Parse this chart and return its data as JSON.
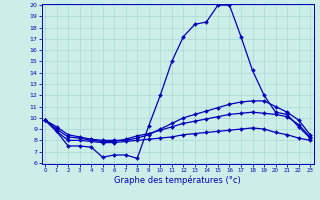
{
  "xlabel": "Graphe des températures (°c)",
  "bg_color": "#cceee8",
  "line_color": "#0000bb",
  "hours": [
    0,
    1,
    2,
    3,
    4,
    5,
    6,
    7,
    8,
    9,
    10,
    11,
    12,
    13,
    14,
    15,
    16,
    17,
    18,
    19,
    20,
    21,
    22,
    23
  ],
  "curve_peak": [
    9.8,
    8.8,
    7.5,
    7.5,
    7.4,
    6.5,
    6.7,
    6.7,
    6.4,
    9.3,
    12.0,
    15.0,
    17.2,
    18.3,
    18.5,
    20.0,
    20.0,
    17.2,
    14.2,
    12.0,
    10.5,
    10.3,
    9.2,
    8.2
  ],
  "curve_high": [
    9.8,
    9.2,
    8.5,
    8.3,
    8.1,
    8.0,
    8.0,
    8.0,
    8.2,
    8.5,
    9.0,
    9.5,
    10.0,
    10.3,
    10.6,
    10.9,
    11.2,
    11.4,
    11.5,
    11.5,
    11.0,
    10.5,
    9.8,
    8.5
  ],
  "curve_mid": [
    9.8,
    9.0,
    8.3,
    8.2,
    8.0,
    7.9,
    7.9,
    8.1,
    8.4,
    8.6,
    8.9,
    9.2,
    9.5,
    9.7,
    9.9,
    10.1,
    10.3,
    10.4,
    10.5,
    10.4,
    10.3,
    10.1,
    9.4,
    8.3
  ],
  "curve_low": [
    9.8,
    8.8,
    8.0,
    8.0,
    7.9,
    7.8,
    7.8,
    7.9,
    8.0,
    8.1,
    8.2,
    8.3,
    8.5,
    8.6,
    8.7,
    8.8,
    8.9,
    9.0,
    9.1,
    9.0,
    8.7,
    8.5,
    8.2,
    8.0
  ],
  "ylim_min": 6,
  "ylim_max": 20,
  "yticks": [
    6,
    7,
    8,
    9,
    10,
    11,
    12,
    13,
    14,
    15,
    16,
    17,
    18,
    19,
    20
  ],
  "xlim_min": 0,
  "xlim_max": 23,
  "xticks": [
    0,
    1,
    2,
    3,
    4,
    5,
    6,
    7,
    8,
    9,
    10,
    11,
    12,
    13,
    14,
    15,
    16,
    17,
    18,
    19,
    20,
    21,
    22,
    23
  ]
}
